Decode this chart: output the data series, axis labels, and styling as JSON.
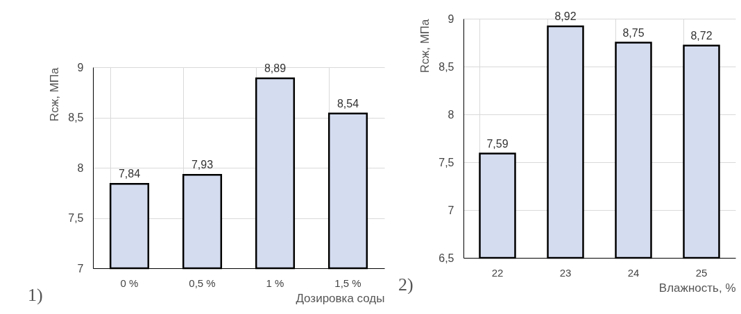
{
  "chart_data": [
    {
      "type": "bar",
      "xlabel": "Дозировка соды",
      "ylabel": "Rсж, МПа",
      "categories": [
        "0 %",
        "0,5 %",
        "1 %",
        "1,5 %"
      ],
      "values": [
        7.84,
        7.93,
        8.89,
        8.54
      ],
      "value_labels": [
        "7,84",
        "7,93",
        "8,89",
        "8,54"
      ],
      "color": "#d4dcf0",
      "ylim": [
        7,
        9
      ],
      "yticks": [
        7,
        {
          "value": 7.5,
          "label": "7,5"
        },
        8,
        {
          "value": 8.5,
          "label": "8,5"
        },
        9
      ],
      "grid": true,
      "annotations": [
        "1)"
      ]
    },
    {
      "type": "bar",
      "xlabel": "Влажность, %",
      "ylabel": "Rсж, МПа",
      "categories": [
        "22",
        "23",
        "24",
        "25"
      ],
      "values": [
        7.59,
        8.92,
        8.75,
        8.72
      ],
      "value_labels": [
        "7,59",
        "8,92",
        "8,75",
        "8,72"
      ],
      "color": "#d4dcf0",
      "ylim": [
        6.5,
        9
      ],
      "yticks": [
        {
          "value": 6.5,
          "label": "6,5"
        },
        7,
        {
          "value": 7.5,
          "label": "7,5"
        },
        8,
        {
          "value": 8.5,
          "label": "8,5"
        },
        9
      ],
      "grid": true,
      "annotations": [
        "2)"
      ]
    }
  ]
}
